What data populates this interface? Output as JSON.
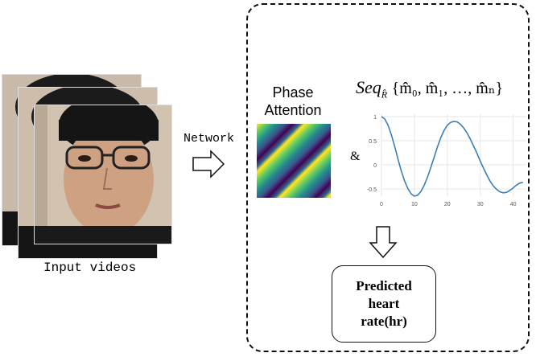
{
  "input": {
    "label": "Input videos"
  },
  "network": {
    "label": "Network"
  },
  "attention": {
    "line1": "Phase",
    "line2": "Attention"
  },
  "ampersand": "&",
  "sequence": {
    "prefix": "Seq",
    "subscript": "R̂",
    "items": "{m̂₀, m̂₁, …, m̂ₙ}"
  },
  "chart_data": {
    "type": "line",
    "x_ticks": [
      0,
      10,
      20,
      30,
      40
    ],
    "y_ticks": [
      1,
      0.5,
      0,
      -0.5
    ],
    "xlim": [
      0,
      44
    ],
    "ylim": [
      -0.65,
      1.05
    ],
    "grid": true,
    "series": [
      {
        "color": "#3a7fb5",
        "x": [
          0,
          1,
          2,
          3,
          4,
          5,
          6,
          7,
          8,
          9,
          10,
          11,
          12,
          13,
          14,
          15,
          16,
          17,
          18,
          19,
          20,
          21,
          22,
          23,
          24,
          25,
          26,
          27,
          28,
          29,
          30,
          31,
          32,
          33,
          34,
          35,
          36,
          37,
          38,
          39,
          40,
          41,
          42,
          43
        ],
        "y": [
          1.0,
          0.95,
          0.82,
          0.62,
          0.38,
          0.12,
          -0.12,
          -0.33,
          -0.49,
          -0.6,
          -0.65,
          -0.63,
          -0.55,
          -0.42,
          -0.25,
          -0.05,
          0.16,
          0.37,
          0.56,
          0.71,
          0.82,
          0.88,
          0.9,
          0.89,
          0.84,
          0.76,
          0.66,
          0.53,
          0.39,
          0.24,
          0.08,
          -0.07,
          -0.21,
          -0.34,
          -0.44,
          -0.51,
          -0.56,
          -0.58,
          -0.57,
          -0.53,
          -0.48,
          -0.42,
          -0.38,
          -0.36
        ]
      }
    ]
  },
  "prediction": {
    "line1": "Predicted",
    "line2": "heart",
    "line3": "rate(hr)"
  },
  "colors": {
    "arrow": "#ffffff",
    "stroke": "#111111",
    "line": "#3a7fb5"
  }
}
